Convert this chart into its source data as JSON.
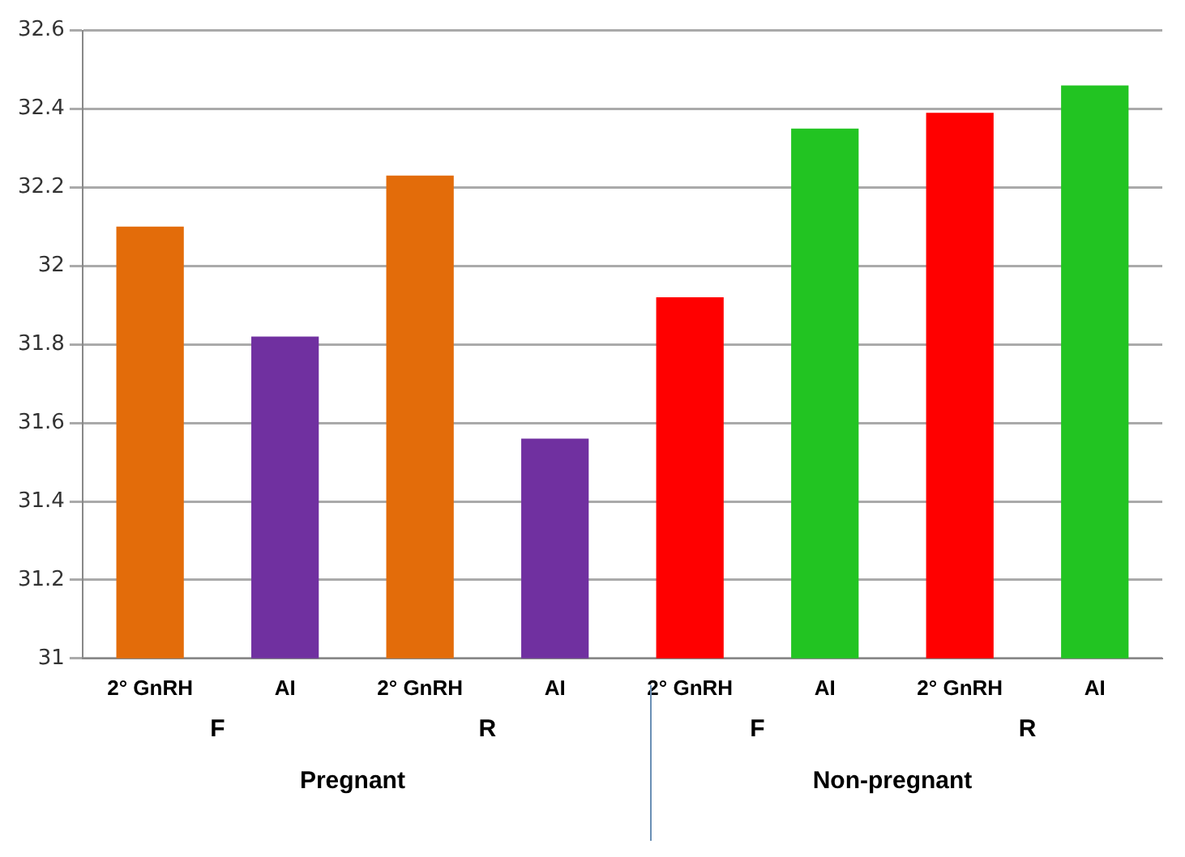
{
  "chart_data": {
    "type": "bar",
    "categories": [
      "2° GnRH",
      "AI",
      "2° GnRH",
      "AI",
      "2° GnRH",
      "AI",
      "2° GnRH",
      "AI"
    ],
    "values": [
      32.1,
      31.82,
      32.23,
      31.56,
      31.92,
      32.35,
      32.39,
      32.46
    ],
    "colors": [
      "#e36c0a",
      "#7030a0",
      "#e36c0a",
      "#7030a0",
      "#ff0000",
      "#22c422",
      "#ff0000",
      "#22c422"
    ],
    "ylim": [
      31,
      32.6
    ],
    "yticks": [
      31,
      31.2,
      31.4,
      31.6,
      31.8,
      32,
      32.2,
      32.4,
      32.6
    ],
    "grid": "y",
    "annotations": [
      "F",
      "R",
      "F",
      "R",
      "Pregnant",
      "Non-pregnant"
    ]
  }
}
